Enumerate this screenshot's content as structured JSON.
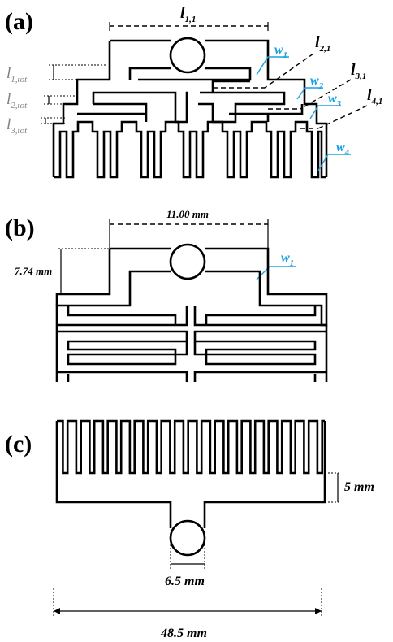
{
  "panels": {
    "a": {
      "label": "(a)",
      "l11": "l",
      "l11_sub": "1,1",
      "l21": "l",
      "l21_sub": "2,1",
      "l31": "l",
      "l31_sub": "3,1",
      "l41": "l",
      "l41_sub": "4,1",
      "l1tot": "l",
      "l1tot_sub": "1,tot",
      "l2tot": "l",
      "l2tot_sub": "2,tot",
      "l3tot": "l",
      "l3tot_sub": "3,tot",
      "w1": "w",
      "w1_sub": "1",
      "w2": "w",
      "w2_sub": "2",
      "w3": "w",
      "w3_sub": "3",
      "w4": "w",
      "w4_sub": "4"
    },
    "b": {
      "label": "(b)",
      "width_dim": "11.00 mm",
      "height_dim": "7.74 mm",
      "w1": "w",
      "w1_sub": "1"
    },
    "c": {
      "label": "(c)",
      "height_dim": "5 mm",
      "circle_dim": "6.5 mm",
      "total_dim": "48.5 mm"
    }
  },
  "colors": {
    "line": "#000000",
    "dimension_blue": "#1ba1e2",
    "tot_grey": "#7f7f7f"
  }
}
